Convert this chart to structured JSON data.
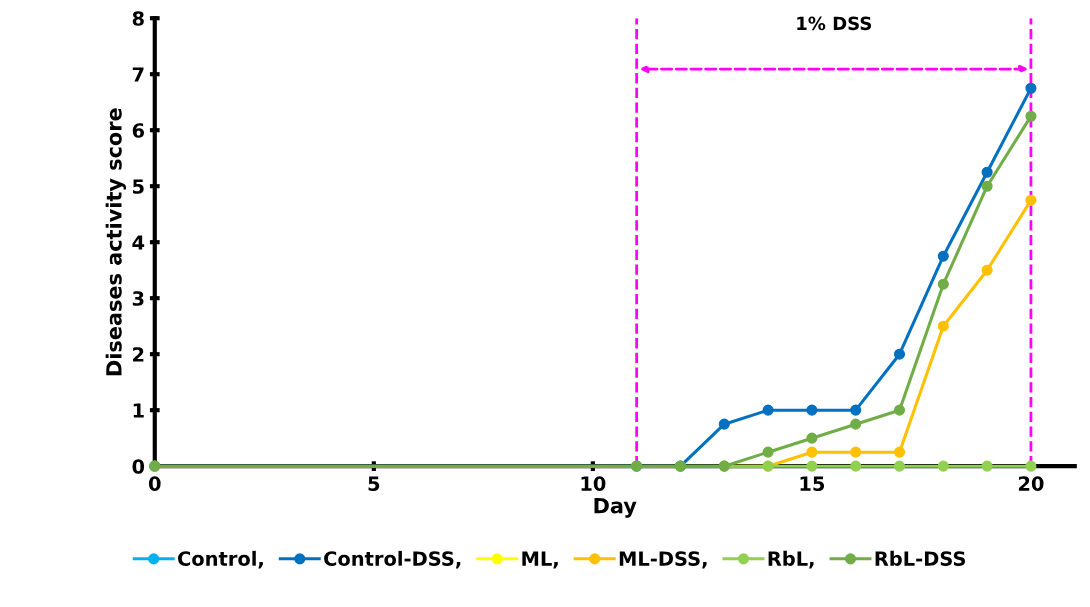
{
  "chart_data": {
    "type": "line",
    "xlabel": "Day",
    "ylabel": "Diseases activity score",
    "x": [
      0,
      11,
      12,
      13,
      14,
      15,
      16,
      17,
      18,
      19,
      20
    ],
    "series": [
      {
        "name": "Control,",
        "color": "#00b0f0",
        "values": [
          null,
          null,
          null,
          null,
          null,
          null,
          null,
          null,
          null,
          null,
          null
        ]
      },
      {
        "name": "Control-DSS,",
        "color": "#0070c0",
        "values": [
          0,
          0,
          0,
          0.75,
          1,
          1,
          1,
          2,
          3.75,
          5.25,
          6.75
        ]
      },
      {
        "name": "ML,",
        "color": "#ffff00",
        "values": [
          null,
          null,
          null,
          null,
          null,
          null,
          null,
          null,
          null,
          null,
          null
        ]
      },
      {
        "name": "ML-DSS,",
        "color": "#ffc000",
        "values": [
          null,
          null,
          null,
          0,
          0,
          0.25,
          0.25,
          0.25,
          2.5,
          3.5,
          4.75
        ]
      },
      {
        "name": "RbL,",
        "color": "#92d050",
        "values": [
          0,
          0,
          0,
          0,
          0,
          0,
          0,
          0,
          0,
          0,
          0
        ]
      },
      {
        "name": "RbL-DSS",
        "color": "#70ad47",
        "values": [
          0,
          0,
          0,
          0,
          0.25,
          0.5,
          0.75,
          1,
          3.25,
          5,
          6.25
        ]
      }
    ],
    "xlim": [
      0,
      21
    ],
    "xticks": [
      0,
      5,
      10,
      15,
      20
    ],
    "ylim": [
      0,
      8
    ],
    "yticks": [
      0,
      1,
      2,
      3,
      4,
      5,
      6,
      7,
      8
    ],
    "ref_lines": [
      {
        "axis": "x",
        "value": 11,
        "color": "#ff00ff",
        "line_style": "dashed"
      },
      {
        "axis": "x",
        "value": 20,
        "color": "#ff00ff",
        "line_style": "dashed"
      }
    ],
    "annotations": [
      "1% DSS"
    ],
    "marker": "circle",
    "line_style": "solid",
    "grid": false,
    "legend": "bottom"
  }
}
